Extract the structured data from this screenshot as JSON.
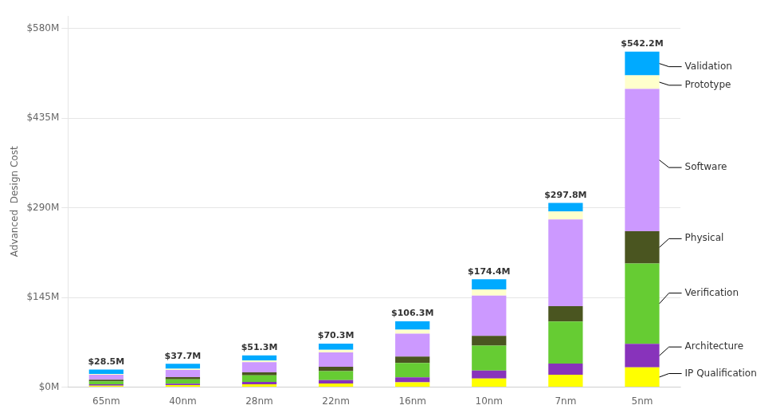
{
  "chart_data": {
    "type": "bar",
    "stacked": true,
    "categories": [
      "65nm",
      "40nm",
      "28nm",
      "22nm",
      "16nm",
      "10nm",
      "7nm",
      "5nm"
    ],
    "series": [
      {
        "name": "IP Qualification",
        "color": "#FFFF00",
        "values": [
          2.5,
          3.2,
          4.5,
          6.0,
          8.0,
          14.0,
          20.0,
          32.0
        ]
      },
      {
        "name": "Architecture",
        "color": "#8833BB",
        "values": [
          2.0,
          2.5,
          4.0,
          5.5,
          8.0,
          13.0,
          18.0,
          38.0
        ]
      },
      {
        "name": "Verification",
        "color": "#66CC33",
        "values": [
          5.0,
          7.0,
          10.5,
          14.5,
          23.0,
          40.0,
          68.0,
          130.0
        ]
      },
      {
        "name": "Physical",
        "color": "#4A5520",
        "values": [
          2.5,
          3.5,
          5.0,
          7.0,
          10.5,
          16.0,
          25.0,
          52.0
        ]
      },
      {
        "name": "Software",
        "color": "#CC99FF",
        "values": [
          8.0,
          11.5,
          16.3,
          23.3,
          37.0,
          65.0,
          140.0,
          230.0
        ]
      },
      {
        "name": "Prototype",
        "color": "#FFFFCC",
        "values": [
          1.5,
          2.0,
          3.0,
          4.0,
          6.5,
          10.0,
          12.8,
          22.0
        ]
      },
      {
        "name": "Validation",
        "color": "#00AAFF",
        "values": [
          7.0,
          8.0,
          8.0,
          10.0,
          13.3,
          16.4,
          14.0,
          38.2
        ]
      }
    ],
    "ylabel": "Advanced  Design Cost",
    "ylim": [
      0,
      600
    ],
    "yticks": [
      {
        "value": 0,
        "label": "$0M"
      },
      {
        "value": 145,
        "label": "$145M"
      },
      {
        "value": 290,
        "label": "$290M"
      },
      {
        "value": 435,
        "label": "$435M"
      },
      {
        "value": 580,
        "label": "$580M"
      }
    ],
    "grid": true,
    "annotations": [
      {
        "text": "$28.5M",
        "x": "65nm",
        "y": 28.5
      },
      {
        "text": "$37.7M",
        "x": "40nm",
        "y": 37.7
      },
      {
        "text": "$51.3M",
        "x": "28nm",
        "y": 51.3
      },
      {
        "text": "$70.3M",
        "x": "22nm",
        "y": 70.3
      },
      {
        "text": "$106.3M",
        "x": "16nm",
        "y": 106.3
      },
      {
        "text": "$174.4M",
        "x": "10nm",
        "y": 174.4
      },
      {
        "text": "$297.8M",
        "x": "7nm",
        "y": 297.8
      },
      {
        "text": "$542.2M",
        "x": "5nm",
        "y": 542.2
      },
      {
        "text": "Validation",
        "x": "5nm",
        "y": 518
      },
      {
        "text": "Prototype",
        "x": "5nm",
        "y": 488
      },
      {
        "text": "Software",
        "x": "5nm",
        "y": 355
      },
      {
        "text": "Physical",
        "x": "5nm",
        "y": 240
      },
      {
        "text": "Verification",
        "x": "5nm",
        "y": 152
      },
      {
        "text": "Architecture",
        "x": "5nm",
        "y": 65
      },
      {
        "text": "IP Qualification",
        "x": "5nm",
        "y": 22
      }
    ]
  }
}
